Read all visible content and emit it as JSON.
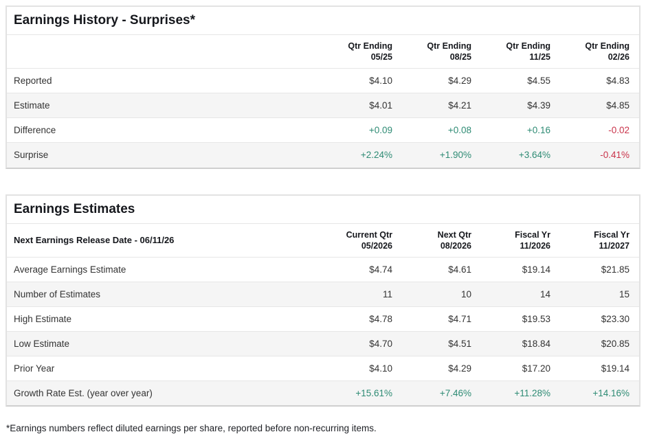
{
  "colors": {
    "positive": "#2e8b74",
    "negative": "#c9334a",
    "row_alt_bg": "#f5f5f5"
  },
  "earnings_history": {
    "title": "Earnings History - Surprises*",
    "columns": [
      {
        "line1": "Qtr Ending",
        "line2": "05/25"
      },
      {
        "line1": "Qtr Ending",
        "line2": "08/25"
      },
      {
        "line1": "Qtr Ending",
        "line2": "11/25"
      },
      {
        "line1": "Qtr Ending",
        "line2": "02/26"
      }
    ],
    "rows": [
      {
        "label": "Reported",
        "values": [
          "$4.10",
          "$4.29",
          "$4.55",
          "$4.83"
        ]
      },
      {
        "label": "Estimate",
        "values": [
          "$4.01",
          "$4.21",
          "$4.39",
          "$4.85"
        ]
      },
      {
        "label": "Difference",
        "values": [
          "+0.09",
          "+0.08",
          "+0.16",
          "-0.02"
        ],
        "tones": [
          "pos",
          "pos",
          "pos",
          "neg"
        ]
      },
      {
        "label": "Surprise",
        "values": [
          "+2.24%",
          "+1.90%",
          "+3.64%",
          "-0.41%"
        ],
        "tones": [
          "pos",
          "pos",
          "pos",
          "neg"
        ]
      }
    ]
  },
  "earnings_estimates": {
    "title": "Earnings Estimates",
    "row_header": "Next Earnings Release Date - 06/11/26",
    "columns": [
      {
        "line1": "Current Qtr",
        "line2": "05/2026"
      },
      {
        "line1": "Next Qtr",
        "line2": "08/2026"
      },
      {
        "line1": "Fiscal Yr",
        "line2": "11/2026"
      },
      {
        "line1": "Fiscal Yr",
        "line2": "11/2027"
      }
    ],
    "rows": [
      {
        "label": "Average Earnings Estimate",
        "values": [
          "$4.74",
          "$4.61",
          "$19.14",
          "$21.85"
        ]
      },
      {
        "label": "Number of Estimates",
        "values": [
          "11",
          "10",
          "14",
          "15"
        ]
      },
      {
        "label": "High Estimate",
        "values": [
          "$4.78",
          "$4.71",
          "$19.53",
          "$23.30"
        ]
      },
      {
        "label": "Low Estimate",
        "values": [
          "$4.70",
          "$4.51",
          "$18.84",
          "$20.85"
        ]
      },
      {
        "label": "Prior Year",
        "values": [
          "$4.10",
          "$4.29",
          "$17.20",
          "$19.14"
        ]
      },
      {
        "label": "Growth Rate Est. (year over year)",
        "values": [
          "+15.61%",
          "+7.46%",
          "+11.28%",
          "+14.16%"
        ],
        "tones": [
          "pos",
          "pos",
          "pos",
          "pos"
        ]
      }
    ]
  },
  "footnote": "*Earnings numbers reflect diluted earnings per share, reported before non-recurring items."
}
